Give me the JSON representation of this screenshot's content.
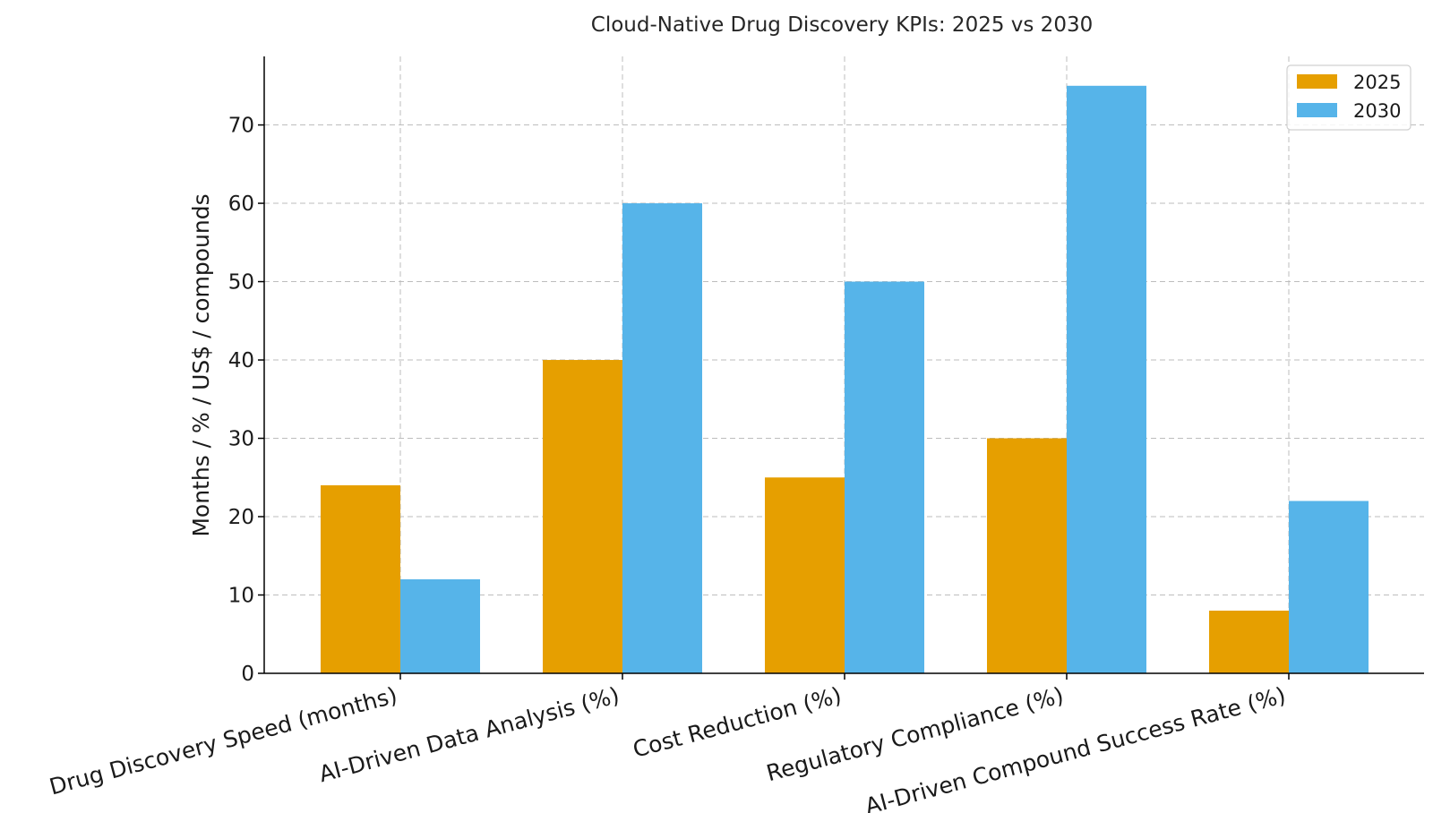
{
  "chart_data": {
    "type": "bar",
    "title": "Cloud-Native Drug Discovery KPIs: 2025 vs 2030",
    "xlabel": "",
    "ylabel": "Months / % / US$ / compounds",
    "categories": [
      "Drug Discovery Speed (months)",
      "AI-Driven Data Analysis (%)",
      "Cost Reduction (%)",
      "Regulatory Compliance (%)",
      "AI-Driven Compound Success Rate (%)"
    ],
    "series": [
      {
        "name": "2025",
        "color": "#E69F00",
        "values": [
          24,
          40,
          25,
          30,
          8
        ]
      },
      {
        "name": "2030",
        "color": "#56B4E9",
        "values": [
          12,
          60,
          50,
          75,
          22
        ]
      }
    ],
    "ylim": [
      0,
      78.75
    ],
    "yticks": [
      0,
      10,
      20,
      30,
      40,
      50,
      60,
      70
    ],
    "grid": true,
    "legend_position": "top-right"
  }
}
